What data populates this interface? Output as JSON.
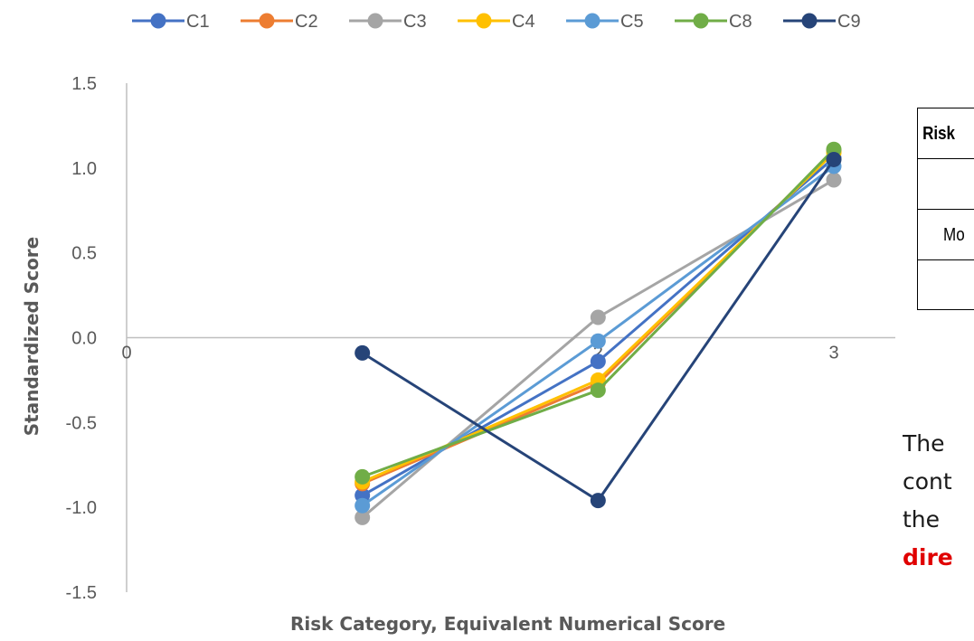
{
  "chart_data": {
    "type": "line",
    "title": "",
    "xlabel": "Risk Category, Equivalent Numerical Score",
    "ylabel": "Standardized Score",
    "xlim": [
      0,
      3
    ],
    "ylim": [
      -1.5,
      1.5
    ],
    "x_ticks": [
      "0",
      "1",
      "2",
      "3"
    ],
    "y_ticks": [
      "1.5",
      "1.0",
      "0.5",
      "0.0",
      "-0.5",
      "-1.0",
      "-1.5"
    ],
    "grid": false,
    "legend": "top",
    "x": [
      1,
      2,
      3
    ],
    "series": [
      {
        "name": "C1",
        "color": "#4472C4",
        "values": [
          -0.93,
          -0.14,
          1.06
        ]
      },
      {
        "name": "C2",
        "color": "#ED7D31",
        "values": [
          -0.86,
          -0.27,
          1.1
        ]
      },
      {
        "name": "C3",
        "color": "#A5A5A5",
        "values": [
          -1.06,
          0.12,
          0.93
        ]
      },
      {
        "name": "C4",
        "color": "#FFC000",
        "values": [
          -0.85,
          -0.25,
          1.09
        ]
      },
      {
        "name": "C5",
        "color": "#5B9BD5",
        "values": [
          -0.99,
          -0.02,
          1.01
        ]
      },
      {
        "name": "C8",
        "color": "#70AD47",
        "values": [
          -0.82,
          -0.31,
          1.11
        ]
      },
      {
        "name": "C9",
        "color": "#264478",
        "values": [
          -0.09,
          -0.96,
          1.05
        ]
      }
    ]
  },
  "table": {
    "header": "Risk",
    "rows": [
      "",
      "Mo",
      ""
    ]
  },
  "side_text": {
    "line1": "The",
    "line2": "cont",
    "line3": "the",
    "line4_emph": "dire"
  }
}
